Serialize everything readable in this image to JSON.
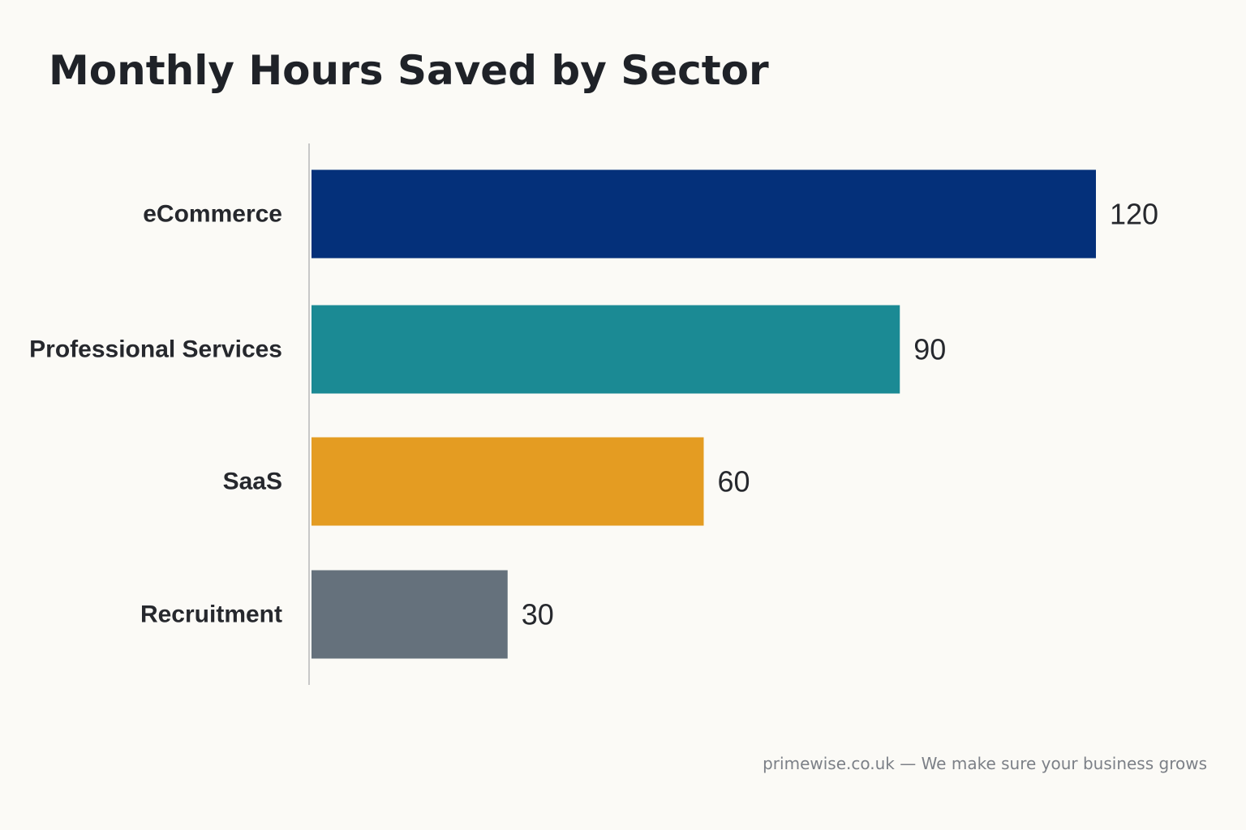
{
  "chart_data": {
    "type": "bar",
    "orientation": "horizontal",
    "title": "Monthly Hours Saved by Sector",
    "xlabel": "",
    "ylabel": "",
    "categories": [
      "eCommerce",
      "Professional Services",
      "SaaS",
      "Recruitment"
    ],
    "values": [
      120,
      90,
      60,
      30
    ],
    "colors": [
      "#04307a",
      "#1b8a94",
      "#e49c22",
      "#65717c"
    ],
    "xlim": [
      0,
      120
    ],
    "grid": false,
    "data_labels": true,
    "legend": "none"
  },
  "footer": {
    "text": "primewise.co.uk — We make sure your business grows"
  },
  "style": {
    "background": "#fbfaf6",
    "axis_color": "#c8c8c8",
    "text_color": "#26282d"
  }
}
